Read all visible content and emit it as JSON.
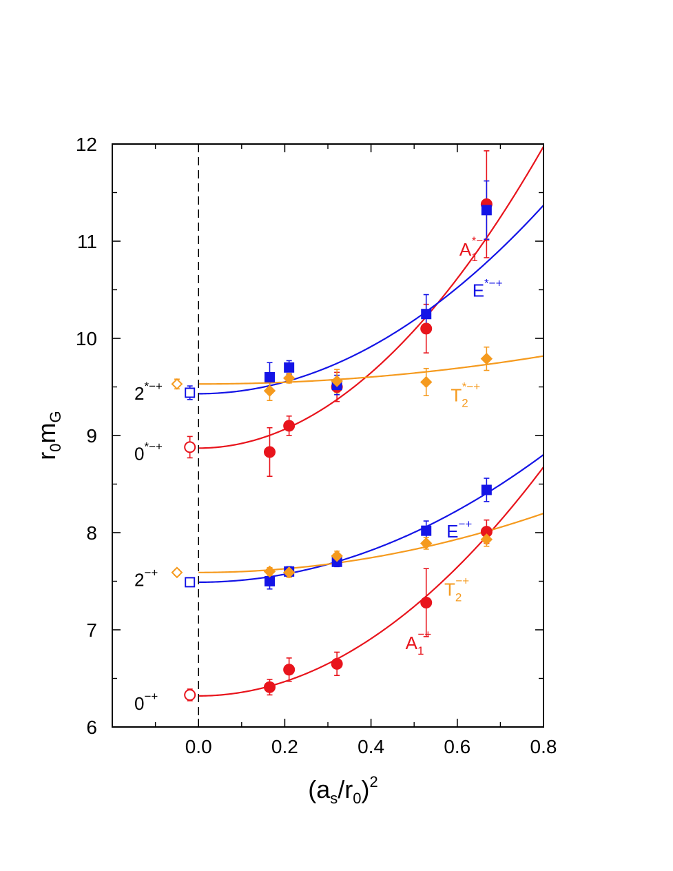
{
  "chart_data": {
    "type": "scatter",
    "xlabel": "(a_s/r_0)^2",
    "ylabel": "r_0 m_G",
    "xlim": [
      -0.2,
      0.8
    ],
    "ylim": [
      6,
      12
    ],
    "x_ticks": [
      "0.0",
      "0.2",
      "0.4",
      "0.6",
      "0.8"
    ],
    "y_ticks": [
      "6",
      "7",
      "8",
      "9",
      "10",
      "11",
      "12"
    ],
    "x_tick_values": [
      0.0,
      0.2,
      0.4,
      0.6,
      0.8
    ],
    "y_tick_values": [
      6,
      7,
      8,
      9,
      10,
      11,
      12
    ],
    "x_minor_tick_values": [
      -0.1,
      0.1,
      0.3,
      0.5,
      0.7
    ],
    "y_minor_tick_values": [
      6.5,
      7.5,
      8.5,
      9.5,
      10.5,
      11.5
    ],
    "reference_line_x": 0.0,
    "grid": false,
    "colors": {
      "red": "#e8141c",
      "blue": "#1414e6",
      "orange": "#f59a1e"
    },
    "series": [
      {
        "label_main": "A",
        "label_sub": "1",
        "label_sup": "−+",
        "label_at": [
          0.48,
          6.8
        ],
        "color": "red",
        "marker": "circle",
        "x": [
          0.165,
          0.21,
          0.321,
          0.528,
          0.668
        ],
        "y": [
          6.41,
          6.59,
          6.65,
          7.28,
          8.01
        ],
        "yerr": [
          0.08,
          0.12,
          0.12,
          0.35,
          0.12
        ],
        "fit": {
          "c": 6.32,
          "k": 3.68
        },
        "continuum": {
          "x": -0.02,
          "y": 6.33,
          "err": 0.06
        }
      },
      {
        "label_main": "E",
        "label_sub": "",
        "label_sup": "−+",
        "label_at": [
          0.575,
          7.95
        ],
        "color": "blue",
        "marker": "square",
        "x": [
          0.165,
          0.21,
          0.321,
          0.528,
          0.668
        ],
        "y": [
          7.5,
          7.6,
          7.7,
          8.02,
          8.44
        ],
        "yerr": [
          0.08,
          0.05,
          0.05,
          0.1,
          0.12
        ],
        "fit": {
          "c": 7.49,
          "k": 2.05
        },
        "continuum": {
          "x": -0.02,
          "y": 7.49,
          "err": 0.04
        }
      },
      {
        "label_main": "T",
        "label_sub": "2",
        "label_sup": "−+",
        "label_at": [
          0.57,
          7.35
        ],
        "color": "orange",
        "marker": "diamond",
        "x": [
          0.165,
          0.21,
          0.321,
          0.528,
          0.668
        ],
        "y": [
          7.6,
          7.59,
          7.76,
          7.89,
          7.93
        ],
        "yerr": [
          0.04,
          0.05,
          0.05,
          0.06,
          0.07
        ],
        "fit": {
          "c": 7.59,
          "k": 0.95
        },
        "continuum": {
          "x": -0.05,
          "y": 7.59,
          "err": 0.03
        }
      },
      {
        "label_main": "A",
        "label_sub": "1",
        "label_sup": "*−+",
        "label_at": [
          0.605,
          10.85
        ],
        "color": "red",
        "marker": "circle",
        "x": [
          0.165,
          0.21,
          0.321,
          0.528,
          0.668
        ],
        "y": [
          8.83,
          9.1,
          9.5,
          10.1,
          11.38
        ],
        "yerr": [
          0.25,
          0.1,
          0.15,
          0.25,
          0.55
        ],
        "fit": {
          "c": 8.87,
          "k": 4.85
        },
        "continuum": {
          "x": -0.02,
          "y": 8.88,
          "err": 0.11
        }
      },
      {
        "label_main": "E",
        "label_sub": "",
        "label_sup": "*−+",
        "label_at": [
          0.635,
          10.43
        ],
        "color": "blue",
        "marker": "square",
        "x": [
          0.165,
          0.21,
          0.321,
          0.528,
          0.668
        ],
        "y": [
          9.6,
          9.7,
          9.52,
          10.25,
          11.32
        ],
        "yerr": [
          0.15,
          0.07,
          0.1,
          0.2,
          0.3
        ],
        "fit": {
          "c": 9.43,
          "k": 3.03
        },
        "continuum": {
          "x": -0.02,
          "y": 9.44,
          "err": 0.07
        }
      },
      {
        "label_main": "T",
        "label_sub": "2",
        "label_sup": "*−+",
        "label_at": [
          0.585,
          9.35
        ],
        "color": "orange",
        "marker": "diamond",
        "x": [
          0.165,
          0.21,
          0.321,
          0.528,
          0.668
        ],
        "y": [
          9.46,
          9.59,
          9.56,
          9.55,
          9.79
        ],
        "yerr": [
          0.1,
          0.05,
          0.12,
          0.14,
          0.12
        ],
        "fit": {
          "c": 9.53,
          "k": 0.45
        },
        "continuum": {
          "x": -0.05,
          "y": 9.53,
          "err": 0.05
        }
      }
    ],
    "state_labels": [
      {
        "main": "0",
        "sup": "−+",
        "y": 6.25
      },
      {
        "main": "2",
        "sup": "−+",
        "y": 7.52
      },
      {
        "main": "0",
        "sup": "*−+",
        "y": 8.82
      },
      {
        "main": "2",
        "sup": "*−+",
        "y": 9.44
      }
    ]
  }
}
